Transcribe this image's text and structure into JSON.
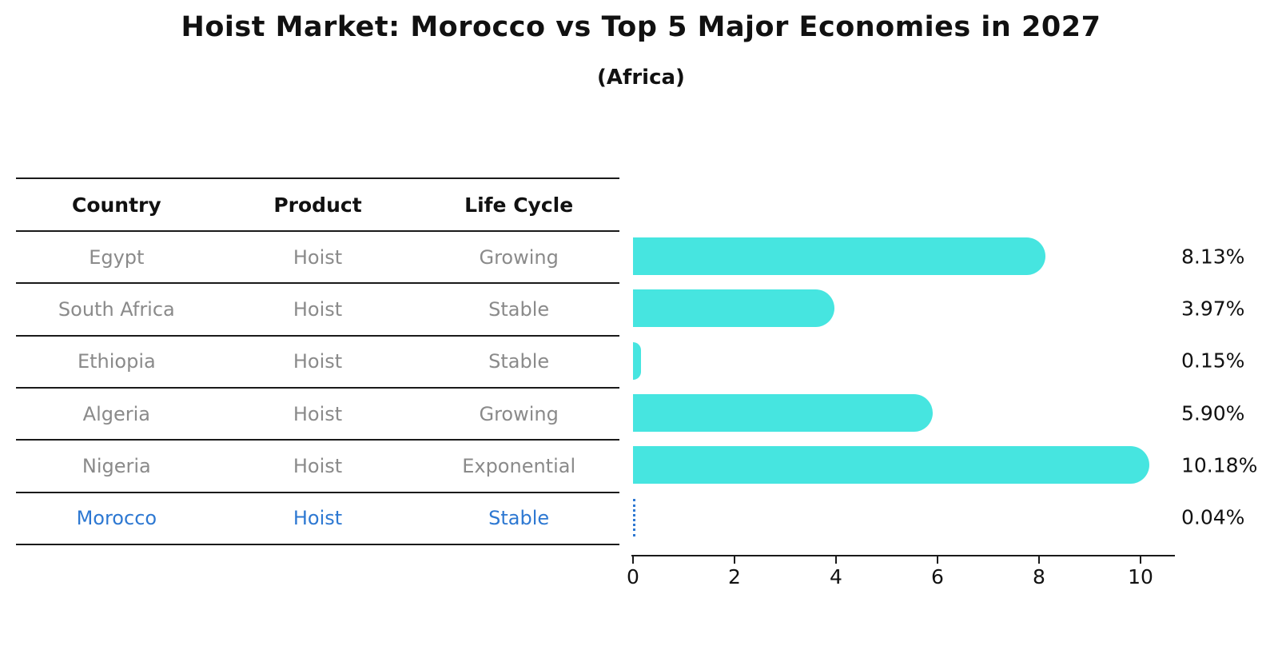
{
  "title": "Hoist Market: Morocco vs Top 5 Major Economies in 2027",
  "subtitle": "(Africa)",
  "table": {
    "headers": [
      "Country",
      "Product",
      "Life Cycle"
    ]
  },
  "chart_data": {
    "type": "bar",
    "orientation": "horizontal",
    "title": "Hoist Market: Morocco vs Top 5 Major Economies in 2027",
    "subtitle": "(Africa)",
    "categories": [
      "Egypt",
      "South Africa",
      "Ethiopia",
      "Algeria",
      "Nigeria",
      "Morocco"
    ],
    "values": [
      8.13,
      3.97,
      0.15,
      5.9,
      10.18,
      0.04
    ],
    "value_labels": [
      "8.13%",
      "3.97%",
      "0.15%",
      "5.90%",
      "10.18%",
      "0.04%"
    ],
    "rows": [
      {
        "country": "Egypt",
        "product": "Hoist",
        "life_cycle": "Growing",
        "value": 8.13,
        "value_label": "8.13%",
        "highlighted": false
      },
      {
        "country": "South Africa",
        "product": "Hoist",
        "life_cycle": "Stable",
        "value": 3.97,
        "value_label": "3.97%",
        "highlighted": false
      },
      {
        "country": "Ethiopia",
        "product": "Hoist",
        "life_cycle": "Stable",
        "value": 0.15,
        "value_label": "0.15%",
        "highlighted": false
      },
      {
        "country": "Algeria",
        "product": "Hoist",
        "life_cycle": "Growing",
        "value": 5.9,
        "value_label": "5.90%",
        "highlighted": false
      },
      {
        "country": "Nigeria",
        "product": "Hoist",
        "life_cycle": "Exponential",
        "value": 10.18,
        "value_label": "10.18%",
        "highlighted": false
      },
      {
        "country": "Morocco",
        "product": "Hoist",
        "life_cycle": "Stable",
        "value": 0.04,
        "value_label": "0.04%",
        "highlighted": true
      }
    ],
    "x_ticks": [
      0,
      2,
      4,
      6,
      8,
      10
    ],
    "xlim": [
      0,
      10.67
    ],
    "xlabel": "",
    "ylabel": "",
    "grid": false,
    "legend": false,
    "bar_color": "#46e5e0",
    "highlight_color": "#2d78d2",
    "muted_text_color": "#8a8a8a",
    "axis_color": "#1a1a1a"
  }
}
